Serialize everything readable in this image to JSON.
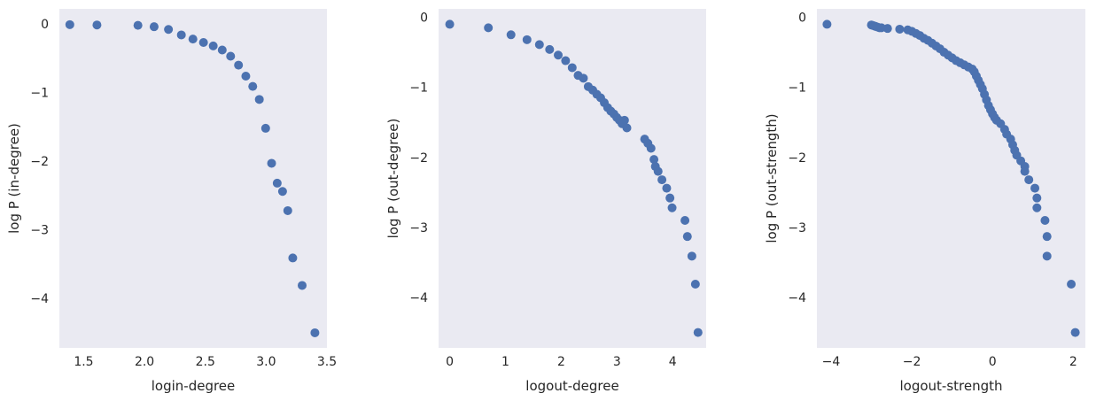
{
  "chart_data": [
    {
      "type": "scatter",
      "xlabel": "login-degree",
      "ylabel": "log P (in-degree)",
      "xlim": [
        1.3,
        3.5
      ],
      "ylim": [
        -4.72,
        0.22
      ],
      "xticks": [
        1.5,
        2.0,
        2.5,
        3.0,
        3.5
      ],
      "xtick_labels": [
        "1.5",
        "2.0",
        "2.5",
        "3.0",
        "3.5"
      ],
      "yticks": [
        0,
        -1,
        -2,
        -3,
        -4
      ],
      "ytick_labels": [
        "0",
        "−1",
        "−2",
        "−3",
        "−4"
      ],
      "grid": false,
      "color": "#4c72b0",
      "points": [
        [
          1.386,
          -0.01
        ],
        [
          1.609,
          -0.015
        ],
        [
          1.946,
          -0.02
        ],
        [
          2.079,
          -0.04
        ],
        [
          2.197,
          -0.08
        ],
        [
          2.303,
          -0.16
        ],
        [
          2.398,
          -0.22
        ],
        [
          2.485,
          -0.27
        ],
        [
          2.565,
          -0.32
        ],
        [
          2.639,
          -0.38
        ],
        [
          2.708,
          -0.47
        ],
        [
          2.773,
          -0.6
        ],
        [
          2.833,
          -0.76
        ],
        [
          2.89,
          -0.91
        ],
        [
          2.944,
          -1.1
        ],
        [
          2.996,
          -1.52
        ],
        [
          3.045,
          -2.03
        ],
        [
          3.091,
          -2.32
        ],
        [
          3.135,
          -2.44
        ],
        [
          3.178,
          -2.72
        ],
        [
          3.219,
          -3.41
        ],
        [
          3.296,
          -3.81
        ],
        [
          3.401,
          -4.5
        ]
      ]
    },
    {
      "type": "scatter",
      "xlabel": "logout-degree",
      "ylabel": "log P (out-degree)",
      "xlim": [
        -0.2,
        4.6
      ],
      "ylim": [
        -4.72,
        0.12
      ],
      "xticks": [
        0,
        1,
        2,
        3,
        4
      ],
      "xtick_labels": [
        "0",
        "1",
        "2",
        "3",
        "4"
      ],
      "yticks": [
        0,
        -1,
        -2,
        -3,
        -4
      ],
      "ytick_labels": [
        "0",
        "−1",
        "−2",
        "−3",
        "−4"
      ],
      "grid": false,
      "color": "#4c72b0",
      "points": [
        [
          0,
          -0.1
        ],
        [
          0.693,
          -0.15
        ],
        [
          1.099,
          -0.25
        ],
        [
          1.386,
          -0.32
        ],
        [
          1.609,
          -0.39
        ],
        [
          1.792,
          -0.46
        ],
        [
          1.946,
          -0.54
        ],
        [
          2.079,
          -0.62
        ],
        [
          2.197,
          -0.72
        ],
        [
          2.303,
          -0.83
        ],
        [
          2.398,
          -0.87
        ],
        [
          2.485,
          -0.99
        ],
        [
          2.565,
          -1.04
        ],
        [
          2.639,
          -1.1
        ],
        [
          2.708,
          -1.15
        ],
        [
          2.773,
          -1.22
        ],
        [
          2.833,
          -1.29
        ],
        [
          2.89,
          -1.34
        ],
        [
          2.944,
          -1.38
        ],
        [
          2.996,
          -1.43
        ],
        [
          3.045,
          -1.47
        ],
        [
          3.091,
          -1.52
        ],
        [
          3.135,
          -1.47
        ],
        [
          3.178,
          -1.58
        ],
        [
          3.497,
          -1.74
        ],
        [
          3.555,
          -1.8
        ],
        [
          3.611,
          -1.87
        ],
        [
          3.664,
          -2.03
        ],
        [
          3.689,
          -2.13
        ],
        [
          3.738,
          -2.2
        ],
        [
          3.807,
          -2.32
        ],
        [
          3.892,
          -2.44
        ],
        [
          3.951,
          -2.58
        ],
        [
          3.989,
          -2.72
        ],
        [
          4.22,
          -2.9
        ],
        [
          4.263,
          -3.13
        ],
        [
          4.344,
          -3.41
        ],
        [
          4.407,
          -3.81
        ],
        [
          4.454,
          -4.5
        ]
      ]
    },
    {
      "type": "scatter",
      "xlabel": "logout-strength",
      "ylabel": "log P (out-strength)",
      "xlim": [
        -4.35,
        2.3
      ],
      "ylim": [
        -4.72,
        0.12
      ],
      "xticks": [
        -4,
        -2,
        0,
        2
      ],
      "xtick_labels": [
        "−4",
        "−2",
        "0",
        "2"
      ],
      "yticks": [
        0,
        -1,
        -2,
        -3,
        -4
      ],
      "ytick_labels": [
        "0",
        "−1",
        "−2",
        "−3",
        "−4"
      ],
      "grid": false,
      "color": "#4c72b0",
      "points": [
        [
          -4.1,
          -0.1
        ],
        [
          -3.0,
          -0.11
        ],
        [
          -2.95,
          -0.12
        ],
        [
          -2.9,
          -0.13
        ],
        [
          -2.85,
          -0.14
        ],
        [
          -2.8,
          -0.15
        ],
        [
          -2.75,
          -0.15
        ],
        [
          -2.6,
          -0.16
        ],
        [
          -2.3,
          -0.17
        ],
        [
          -2.1,
          -0.18
        ],
        [
          -2.0,
          -0.2
        ],
        [
          -1.9,
          -0.23
        ],
        [
          -1.8,
          -0.26
        ],
        [
          -1.7,
          -0.3
        ],
        [
          -1.6,
          -0.33
        ],
        [
          -1.5,
          -0.37
        ],
        [
          -1.4,
          -0.41
        ],
        [
          -1.3,
          -0.45
        ],
        [
          -1.2,
          -0.5
        ],
        [
          -1.1,
          -0.54
        ],
        [
          -1.0,
          -0.58
        ],
        [
          -0.9,
          -0.62
        ],
        [
          -0.8,
          -0.65
        ],
        [
          -0.7,
          -0.68
        ],
        [
          -0.6,
          -0.71
        ],
        [
          -0.5,
          -0.74
        ],
        [
          -0.45,
          -0.78
        ],
        [
          -0.4,
          -0.84
        ],
        [
          -0.35,
          -0.9
        ],
        [
          -0.3,
          -0.96
        ],
        [
          -0.25,
          -1.02
        ],
        [
          -0.2,
          -1.1
        ],
        [
          -0.15,
          -1.18
        ],
        [
          -0.1,
          -1.26
        ],
        [
          -0.05,
          -1.32
        ],
        [
          0.0,
          -1.38
        ],
        [
          0.05,
          -1.43
        ],
        [
          0.1,
          -1.47
        ],
        [
          0.2,
          -1.52
        ],
        [
          0.3,
          -1.6
        ],
        [
          0.35,
          -1.67
        ],
        [
          0.45,
          -1.74
        ],
        [
          0.5,
          -1.82
        ],
        [
          0.55,
          -1.9
        ],
        [
          0.6,
          -1.97
        ],
        [
          0.7,
          -2.05
        ],
        [
          0.8,
          -2.13
        ],
        [
          0.8,
          -2.2
        ],
        [
          0.9,
          -2.32
        ],
        [
          1.05,
          -2.44
        ],
        [
          1.1,
          -2.58
        ],
        [
          1.1,
          -2.72
        ],
        [
          1.3,
          -2.9
        ],
        [
          1.35,
          -3.13
        ],
        [
          1.35,
          -3.41
        ],
        [
          1.95,
          -3.81
        ],
        [
          2.05,
          -4.5
        ]
      ]
    }
  ]
}
